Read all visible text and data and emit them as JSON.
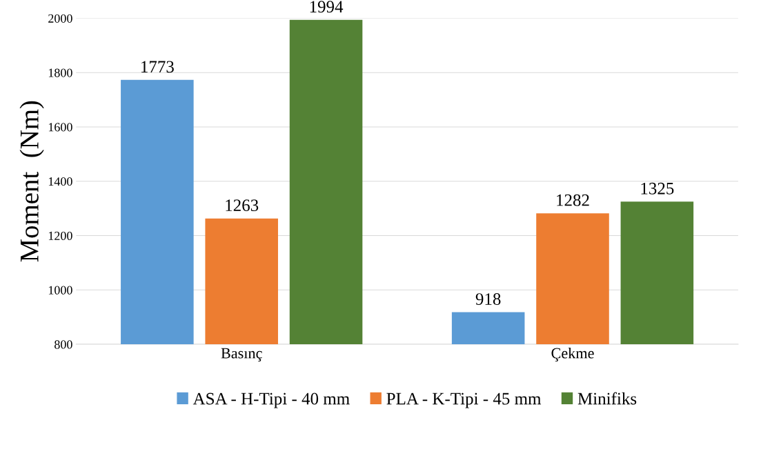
{
  "chart_data": {
    "type": "bar",
    "ylabel": "Moment  (Nm)",
    "categories": [
      "Basınç",
      "Çekme"
    ],
    "series": [
      {
        "name": "ASA - H-Tipi - 40 mm",
        "color": "#5b9bd5",
        "values": [
          1773,
          918
        ]
      },
      {
        "name": "PLA - K-Tipi - 45 mm",
        "color": "#ed7d31",
        "values": [
          1263,
          1282
        ]
      },
      {
        "name": "Minifiks",
        "color": "#548235",
        "values": [
          1994,
          1325
        ]
      }
    ],
    "ylim": [
      800,
      2000
    ],
    "yticks": [
      800,
      1000,
      1200,
      1400,
      1600,
      1800,
      2000
    ],
    "grid": "y",
    "legend": "bottom",
    "data_labels": true
  }
}
